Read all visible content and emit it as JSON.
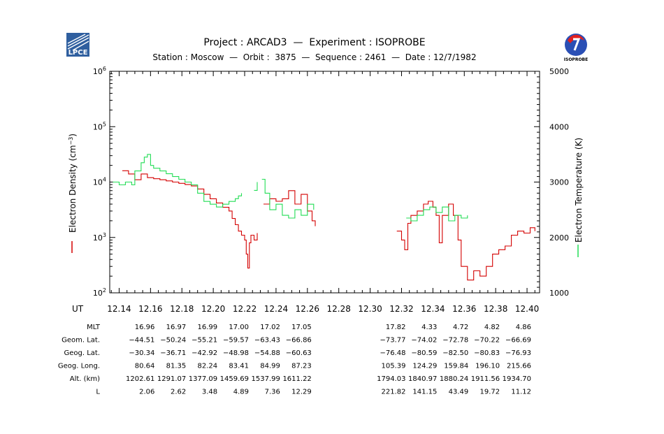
{
  "header": {
    "title": "Project : ARCAD3  —  Experiment : ISOPROBE",
    "subtitle": "Station : Moscow  —  Orbit :  3875  —  Sequence : 2461  —  Date : 12/7/1982",
    "left_logo_text": "LPCE",
    "right_logo_text": "ISOPROBE"
  },
  "colors": {
    "density": "#d40000",
    "temperature": "#22dd55",
    "axis": "#000000"
  },
  "chart_data": {
    "type": "line",
    "x_axis_label": "UT",
    "x_range": [
      12.134,
      12.408
    ],
    "x_ticks": [
      "12.14",
      "12.16",
      "12.18",
      "12.20",
      "12.22",
      "12.24",
      "12.26",
      "12.28",
      "12.30",
      "12.32",
      "12.34",
      "12.36",
      "12.38",
      "12.40"
    ],
    "x_tick_values": [
      12.14,
      12.16,
      12.18,
      12.2,
      12.22,
      12.24,
      12.26,
      12.28,
      12.3,
      12.32,
      12.34,
      12.36,
      12.38,
      12.4
    ],
    "y_left": {
      "label_main": "Electron Density (cm",
      "label_sup": "−3",
      "label_end": ")",
      "scale": "log",
      "range": [
        100,
        1000000
      ],
      "tick_base": "10",
      "tick_exponents": [
        "2",
        "3",
        "4",
        "5",
        "6"
      ]
    },
    "y_right": {
      "label": "Electron Temperature (K)",
      "scale": "linear",
      "range": [
        1000,
        5000
      ],
      "ticks": [
        "1000",
        "2000",
        "3000",
        "4000",
        "5000"
      ],
      "tick_values": [
        1000,
        2000,
        3000,
        4000,
        5000
      ]
    },
    "series": [
      {
        "axis": "left",
        "segments": [
          [
            [
              12.142,
              16000
            ],
            [
              12.146,
              14000
            ],
            [
              12.15,
              11000
            ],
            [
              12.154,
              14000
            ],
            [
              12.158,
              12000
            ],
            [
              12.162,
              11500
            ],
            [
              12.166,
              11000
            ],
            [
              12.17,
              10500
            ],
            [
              12.174,
              10000
            ],
            [
              12.178,
              9500
            ],
            [
              12.182,
              9000
            ],
            [
              12.186,
              8500
            ],
            [
              12.19,
              7500
            ],
            [
              12.194,
              6000
            ],
            [
              12.198,
              5000
            ],
            [
              12.202,
              4200
            ],
            [
              12.206,
              3500
            ],
            [
              12.21,
              3000
            ],
            [
              12.212,
              2200
            ],
            [
              12.214,
              1700
            ],
            [
              12.216,
              1300
            ],
            [
              12.218,
              1100
            ],
            [
              12.22,
              900
            ],
            [
              12.221,
              500
            ],
            [
              12.222,
              280
            ],
            [
              12.223,
              800
            ],
            [
              12.224,
              1100
            ],
            [
              12.226,
              900
            ],
            [
              12.228,
              1200
            ]
          ],
          [
            [
              12.232,
              4000
            ],
            [
              12.236,
              5000
            ],
            [
              12.24,
              4500
            ],
            [
              12.244,
              5000
            ],
            [
              12.248,
              7000
            ],
            [
              12.252,
              4000
            ],
            [
              12.256,
              6000
            ],
            [
              12.26,
              3000
            ],
            [
              12.263,
              2000
            ],
            [
              12.265,
              1600
            ]
          ],
          [
            [
              12.317,
              1300
            ],
            [
              12.32,
              900
            ],
            [
              12.322,
              600
            ],
            [
              12.324,
              1800
            ],
            [
              12.326,
              2500
            ],
            [
              12.33,
              3000
            ],
            [
              12.334,
              4000
            ],
            [
              12.337,
              4500
            ],
            [
              12.34,
              3500
            ],
            [
              12.342,
              2500
            ],
            [
              12.344,
              800
            ],
            [
              12.346,
              2500
            ],
            [
              12.35,
              4000
            ],
            [
              12.353,
              2500
            ],
            [
              12.356,
              900
            ],
            [
              12.358,
              300
            ],
            [
              12.362,
              170
            ],
            [
              12.366,
              250
            ],
            [
              12.37,
              200
            ],
            [
              12.374,
              300
            ],
            [
              12.378,
              500
            ],
            [
              12.382,
              600
            ],
            [
              12.386,
              700
            ],
            [
              12.39,
              1100
            ],
            [
              12.394,
              1300
            ],
            [
              12.398,
              1200
            ],
            [
              12.402,
              1500
            ],
            [
              12.405,
              1300
            ]
          ]
        ]
      },
      {
        "axis": "right",
        "segments": [
          [
            [
              12.136,
              3000
            ],
            [
              12.14,
              2950
            ],
            [
              12.144,
              3000
            ],
            [
              12.148,
              2950
            ],
            [
              12.15,
              3200
            ],
            [
              12.154,
              3350
            ],
            [
              12.156,
              3450
            ],
            [
              12.158,
              3500
            ],
            [
              12.16,
              3300
            ],
            [
              12.162,
              3250
            ],
            [
              12.166,
              3200
            ],
            [
              12.17,
              3150
            ],
            [
              12.174,
              3100
            ],
            [
              12.178,
              3050
            ],
            [
              12.182,
              3000
            ],
            [
              12.186,
              2950
            ],
            [
              12.19,
              2800
            ],
            [
              12.194,
              2650
            ],
            [
              12.198,
              2600
            ],
            [
              12.202,
              2550
            ],
            [
              12.206,
              2600
            ],
            [
              12.21,
              2650
            ],
            [
              12.214,
              2700
            ],
            [
              12.216,
              2750
            ],
            [
              12.218,
              2800
            ]
          ],
          [
            [
              12.226,
              2850
            ],
            [
              12.228,
              3000
            ]
          ],
          [
            [
              12.231,
              3050
            ],
            [
              12.233,
              2800
            ],
            [
              12.236,
              2500
            ],
            [
              12.24,
              2600
            ],
            [
              12.244,
              2400
            ],
            [
              12.248,
              2350
            ],
            [
              12.252,
              2500
            ],
            [
              12.256,
              2400
            ],
            [
              12.26,
              2600
            ],
            [
              12.264,
              2500
            ]
          ],
          [
            [
              12.323,
              2350
            ],
            [
              12.326,
              2300
            ],
            [
              12.33,
              2400
            ],
            [
              12.334,
              2500
            ],
            [
              12.338,
              2550
            ],
            [
              12.342,
              2450
            ],
            [
              12.346,
              2550
            ],
            [
              12.35,
              2300
            ],
            [
              12.354,
              2400
            ],
            [
              12.358,
              2350
            ],
            [
              12.362,
              2400
            ]
          ]
        ]
      }
    ],
    "table": {
      "rows": [
        {
          "label": "MLT",
          "values": [
            "16.96",
            "16.97",
            "16.99",
            "17.00",
            "17.02",
            "17.05",
            "17.82",
            "4.33",
            "4.72",
            "4.82",
            "4.86"
          ]
        },
        {
          "label": "Geom. Lat.",
          "values": [
            "−44.51",
            "−50.24",
            "−55.21",
            "−59.57",
            "−63.43",
            "−66.86",
            "−73.77",
            "−74.02",
            "−72.78",
            "−70.22",
            "−66.69"
          ]
        },
        {
          "label": "Geog. Lat.",
          "values": [
            "−30.34",
            "−36.71",
            "−42.92",
            "−48.98",
            "−54.88",
            "−60.63",
            "−76.48",
            "−80.59",
            "−82.50",
            "−80.83",
            "−76.93"
          ]
        },
        {
          "label": "Geog. Long.",
          "values": [
            "80.64",
            "81.35",
            "82.24",
            "83.41",
            "84.99",
            "87.23",
            "105.39",
            "124.29",
            "159.84",
            "196.10",
            "215.66"
          ]
        },
        {
          "label": "Alt. (km)",
          "values": [
            "1202.61",
            "1291.07",
            "1377.09",
            "1459.69",
            "1537.99",
            "1611.22",
            "1794.03",
            "1840.97",
            "1880.24",
            "1911.56",
            "1934.70"
          ]
        },
        {
          "label": "L",
          "values": [
            "2.06",
            "2.62",
            "3.48",
            "4.89",
            "7.36",
            "12.29",
            "221.82",
            "141.15",
            "43.49",
            "19.72",
            "11.12"
          ]
        }
      ],
      "column_x": [
        12.16,
        12.18,
        12.2,
        12.22,
        12.24,
        12.26,
        12.32,
        12.34,
        12.36,
        12.38,
        12.4
      ]
    }
  }
}
